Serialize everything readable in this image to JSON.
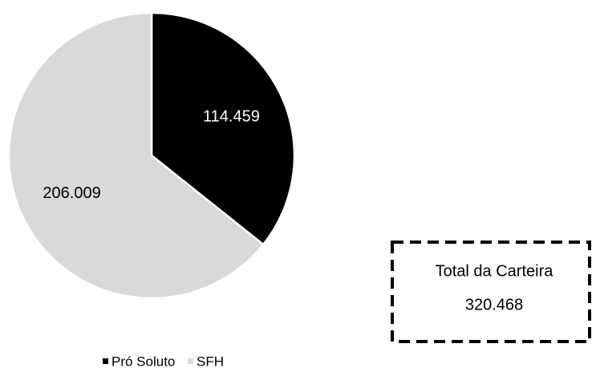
{
  "chart_data": {
    "type": "pie",
    "categories": [
      "Pró Soluto",
      "SFH"
    ],
    "values": [
      114459,
      206009
    ],
    "value_labels": [
      "114.459",
      "206.009"
    ],
    "colors": [
      "#000000",
      "#d9d9d9"
    ],
    "legend": "bottom",
    "annotation": [
      "Total da Carteira",
      "320.468"
    ]
  }
}
